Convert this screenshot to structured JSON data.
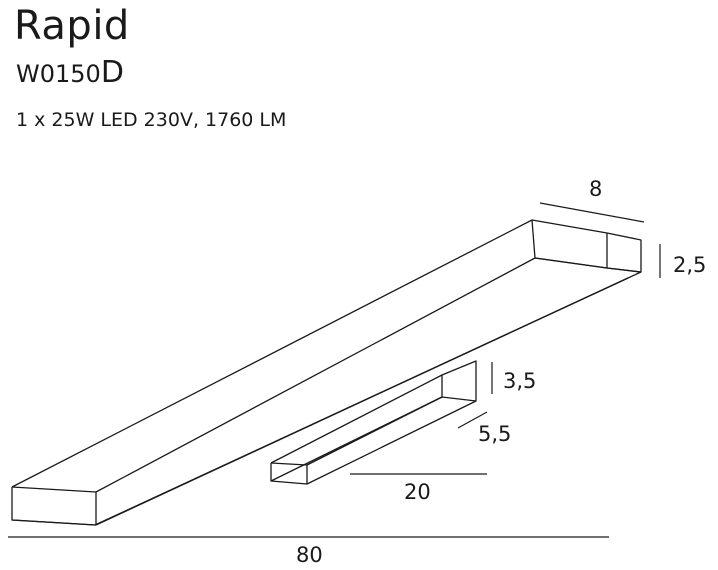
{
  "product": {
    "name": "Rapid",
    "model_prefix": "W0150",
    "model_suffix": "D",
    "spec": "1 x 25W LED 230V, 1760 LM"
  },
  "dimensions": {
    "depth": "8",
    "height": "2,5",
    "bracket_height": "3,5",
    "bracket_width": "5,5",
    "bracket_length": "20",
    "total_length": "80"
  }
}
